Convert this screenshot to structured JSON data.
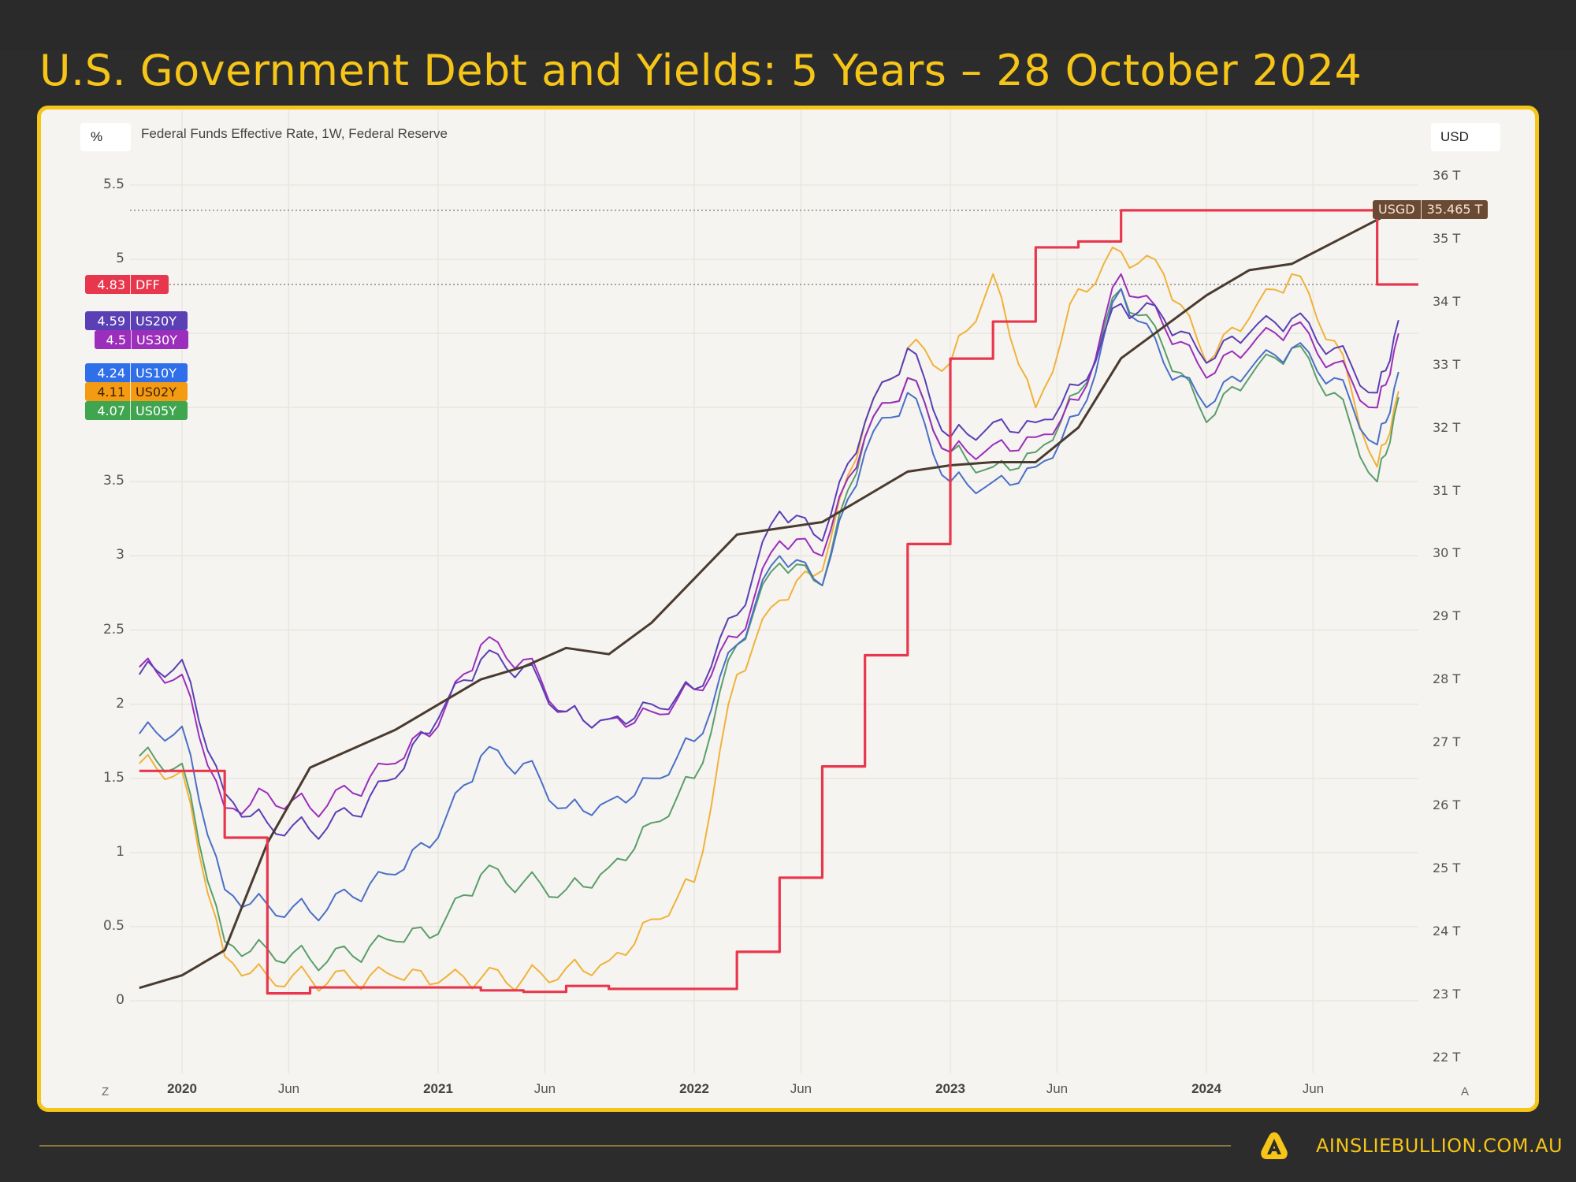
{
  "header": {
    "title": "U.S. Government Debt and Yields: 5 Years – 28 October 2024"
  },
  "chart_header": {
    "left_unit": "%",
    "series_title": "Federal Funds Effective Rate, 1W, Federal Reserve",
    "right_unit": "USD"
  },
  "left_axis": {
    "ticks": [
      "5.5",
      "5",
      "3.5",
      "3",
      "2.5",
      "2",
      "1.5",
      "1",
      "0.5",
      "0"
    ]
  },
  "right_axis": {
    "ticks": [
      "36 T",
      "35 T",
      "34 T",
      "33 T",
      "32 T",
      "31 T",
      "30 T",
      "29 T",
      "28 T",
      "27 T",
      "26 T",
      "25 T",
      "24 T",
      "23 T",
      "22 T"
    ]
  },
  "x_axis": {
    "ticks": [
      {
        "label": "2020",
        "major": true
      },
      {
        "label": "Jun",
        "major": false
      },
      {
        "label": "2021",
        "major": true
      },
      {
        "label": "Jun",
        "major": false
      },
      {
        "label": "2022",
        "major": true
      },
      {
        "label": "Jun",
        "major": false
      },
      {
        "label": "2023",
        "major": true
      },
      {
        "label": "Jun",
        "major": false
      },
      {
        "label": "2024",
        "major": true
      },
      {
        "label": "Jun",
        "major": false
      }
    ],
    "left_corner": "Z",
    "right_corner": "A"
  },
  "legend_badges": [
    {
      "value": "4.83",
      "name": "DFF",
      "color": "#e8374d",
      "text": "#ffffff"
    },
    {
      "value": "4.59",
      "name": "US20Y",
      "color": "#5a3fb5",
      "text": "#ffffff"
    },
    {
      "value": "4.5",
      "name": "US30Y",
      "color": "#9c2ebc",
      "text": "#ffffff"
    },
    {
      "value": "4.24",
      "name": "US10Y",
      "color": "#2f6fea",
      "text": "#ffffff"
    },
    {
      "value": "4.11",
      "name": "US02Y",
      "color": "#f59b13",
      "text": "#3a2200"
    },
    {
      "value": "4.07",
      "name": "US05Y",
      "color": "#3fa64f",
      "text": "#ffffff"
    }
  ],
  "debt_badge": {
    "name": "USGD",
    "value": "35.465 T",
    "color": "#6b4a33"
  },
  "footer": {
    "url": "AINSLIEBULLION.COM.AU",
    "logo": "ainslie-a-logo"
  },
  "colors": {
    "accent": "#f5c518",
    "background": "#2d2c2c",
    "panel": "#f6f4f0",
    "DFF": "#e8374d",
    "US20Y": "#5a3fb5",
    "US30Y": "#9c2ebc",
    "US10Y": "#4a6fc7",
    "US02Y": "#f0b23a",
    "US05Y": "#5a9e6a",
    "USGD": "#4a3b30"
  },
  "chart_data": {
    "type": "line",
    "title": "U.S. Government Debt and Yields: 5 Years – 28 October 2024",
    "subtitle": "Federal Funds Effective Rate, 1W, Federal Reserve",
    "xlabel": "",
    "ylabel": "%",
    "y2label": "USD",
    "ylim": [
      0,
      5.5
    ],
    "y2lim": [
      22,
      36
    ],
    "legend_position": "left-axis badges",
    "grid": true,
    "x": [
      "2019-11",
      "2020-01",
      "2020-03",
      "2020-05",
      "2020-07",
      "2020-09",
      "2020-11",
      "2021-01",
      "2021-03",
      "2021-05",
      "2021-07",
      "2021-09",
      "2021-11",
      "2022-01",
      "2022-03",
      "2022-05",
      "2022-07",
      "2022-09",
      "2022-11",
      "2023-01",
      "2023-03",
      "2023-05",
      "2023-07",
      "2023-09",
      "2023-11",
      "2024-01",
      "2024-03",
      "2024-05",
      "2024-07",
      "2024-09",
      "2024-10"
    ],
    "series": [
      {
        "name": "DFF",
        "axis": "left",
        "values": [
          1.55,
          1.55,
          1.1,
          0.05,
          0.09,
          0.09,
          0.09,
          0.09,
          0.07,
          0.06,
          0.1,
          0.08,
          0.08,
          0.08,
          0.33,
          0.83,
          1.58,
          2.33,
          3.08,
          4.33,
          4.58,
          5.08,
          5.12,
          5.33,
          5.33,
          5.33,
          5.33,
          5.33,
          5.33,
          4.83,
          4.83
        ]
      },
      {
        "name": "US20Y",
        "axis": "left",
        "values": [
          2.2,
          2.3,
          1.4,
          1.2,
          1.15,
          1.25,
          1.5,
          1.9,
          2.3,
          2.25,
          1.95,
          1.9,
          2.0,
          2.1,
          2.6,
          3.3,
          3.1,
          3.9,
          4.4,
          3.8,
          3.9,
          3.9,
          4.15,
          4.7,
          4.6,
          4.3,
          4.5,
          4.6,
          4.4,
          4.1,
          4.59
        ]
      },
      {
        "name": "US30Y",
        "axis": "left",
        "values": [
          2.25,
          2.2,
          1.3,
          1.4,
          1.3,
          1.4,
          1.6,
          1.85,
          2.4,
          2.3,
          1.95,
          1.9,
          1.95,
          2.1,
          2.45,
          3.1,
          3.0,
          3.8,
          4.2,
          3.7,
          3.75,
          3.8,
          4.05,
          4.9,
          4.55,
          4.2,
          4.4,
          4.55,
          4.3,
          4.0,
          4.5
        ]
      },
      {
        "name": "US10Y",
        "axis": "left",
        "values": [
          1.8,
          1.85,
          0.75,
          0.65,
          0.6,
          0.7,
          0.85,
          1.1,
          1.65,
          1.6,
          1.3,
          1.35,
          1.5,
          1.75,
          2.4,
          3.0,
          2.8,
          3.7,
          4.1,
          3.5,
          3.5,
          3.6,
          3.95,
          4.8,
          4.3,
          4.0,
          4.25,
          4.4,
          4.2,
          3.75,
          4.24
        ]
      },
      {
        "name": "US02Y",
        "axis": "left",
        "values": [
          1.6,
          1.55,
          0.3,
          0.17,
          0.15,
          0.13,
          0.16,
          0.12,
          0.15,
          0.15,
          0.22,
          0.27,
          0.55,
          0.8,
          2.2,
          2.7,
          2.9,
          3.9,
          4.4,
          4.3,
          4.9,
          4.0,
          4.8,
          5.05,
          4.9,
          4.3,
          4.6,
          4.9,
          4.45,
          3.6,
          4.11
        ]
      },
      {
        "name": "US05Y",
        "axis": "left",
        "values": [
          1.65,
          1.6,
          0.4,
          0.35,
          0.28,
          0.3,
          0.4,
          0.45,
          0.85,
          0.8,
          0.75,
          0.9,
          1.2,
          1.5,
          2.4,
          2.95,
          2.8,
          3.8,
          4.2,
          3.7,
          3.6,
          3.7,
          4.1,
          4.8,
          4.4,
          3.9,
          4.2,
          4.4,
          4.1,
          3.5,
          4.07
        ]
      },
      {
        "name": "USGD",
        "axis": "right",
        "unit": "T USD",
        "values": [
          23.1,
          23.3,
          23.7,
          25.4,
          26.6,
          26.9,
          27.2,
          27.6,
          28.0,
          28.2,
          28.5,
          28.4,
          28.9,
          29.6,
          30.3,
          30.4,
          30.5,
          30.9,
          31.3,
          31.4,
          31.45,
          31.45,
          32.0,
          33.1,
          33.6,
          34.1,
          34.5,
          34.6,
          34.95,
          35.3,
          35.465
        ]
      }
    ],
    "annotations": [
      {
        "label": "USGD",
        "value": "35.465 T"
      },
      {
        "label": "DFF",
        "value": "4.83"
      }
    ]
  }
}
